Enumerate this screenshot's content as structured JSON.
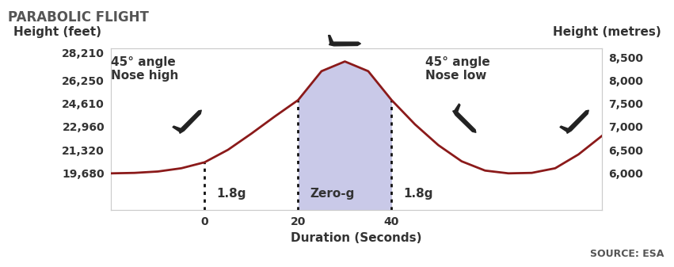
{
  "chart_data": {
    "type": "line",
    "title": "PARABOLIC FLIGHT",
    "x_label": "Duration (Seconds)",
    "y_label": "Height (feet)",
    "y2_label": "Height (metres)",
    "source": "SOURCE: ESA",
    "x": [
      -20,
      -15,
      -10,
      -5,
      0,
      5,
      10,
      15,
      20,
      25,
      30,
      35,
      40,
      45,
      50,
      55,
      60,
      65,
      70,
      75,
      80,
      85
    ],
    "series": [
      {
        "color": "#8b1a1a",
        "axis": "y2",
        "values": [
          5990,
          6000,
          6030,
          6100,
          6230,
          6500,
          6850,
          7220,
          7575,
          8200,
          8410,
          8200,
          7575,
          7050,
          6600,
          6250,
          6050,
          5990,
          6000,
          6100,
          6400,
          6800
        ]
      }
    ],
    "xlim": [
      -20,
      85
    ],
    "xticks": [
      0,
      20,
      40
    ],
    "ylim": [
      17060,
      28543
    ],
    "yticks": [
      {
        "value": 19680,
        "label": "19,680"
      },
      {
        "value": 21320,
        "label": "21,320"
      },
      {
        "value": 22960,
        "label": "22,960"
      },
      {
        "value": 24610,
        "label": "24,610"
      },
      {
        "value": 26250,
        "label": "26,250"
      },
      {
        "value": 28210,
        "label": "28,210"
      }
    ],
    "y2lim": [
      5200,
      8700
    ],
    "y2ticks": [
      {
        "value": 6000,
        "label": "6,000"
      },
      {
        "value": 6500,
        "label": "6,500"
      },
      {
        "value": 7000,
        "label": "7,000"
      },
      {
        "value": 7500,
        "label": "7,500"
      },
      {
        "value": 8000,
        "label": "8,000"
      },
      {
        "value": 8500,
        "label": "8,500"
      }
    ],
    "grid": false,
    "phases": [
      {
        "label": "1.8g",
        "start": 0
      },
      {
        "label": "Zero-g",
        "start": 20,
        "color": "#c9c9e8"
      },
      {
        "label": "1.8g",
        "start": 40
      }
    ],
    "annotations": [
      "45° angle\nNose high",
      "45° angle\nNose low"
    ]
  }
}
